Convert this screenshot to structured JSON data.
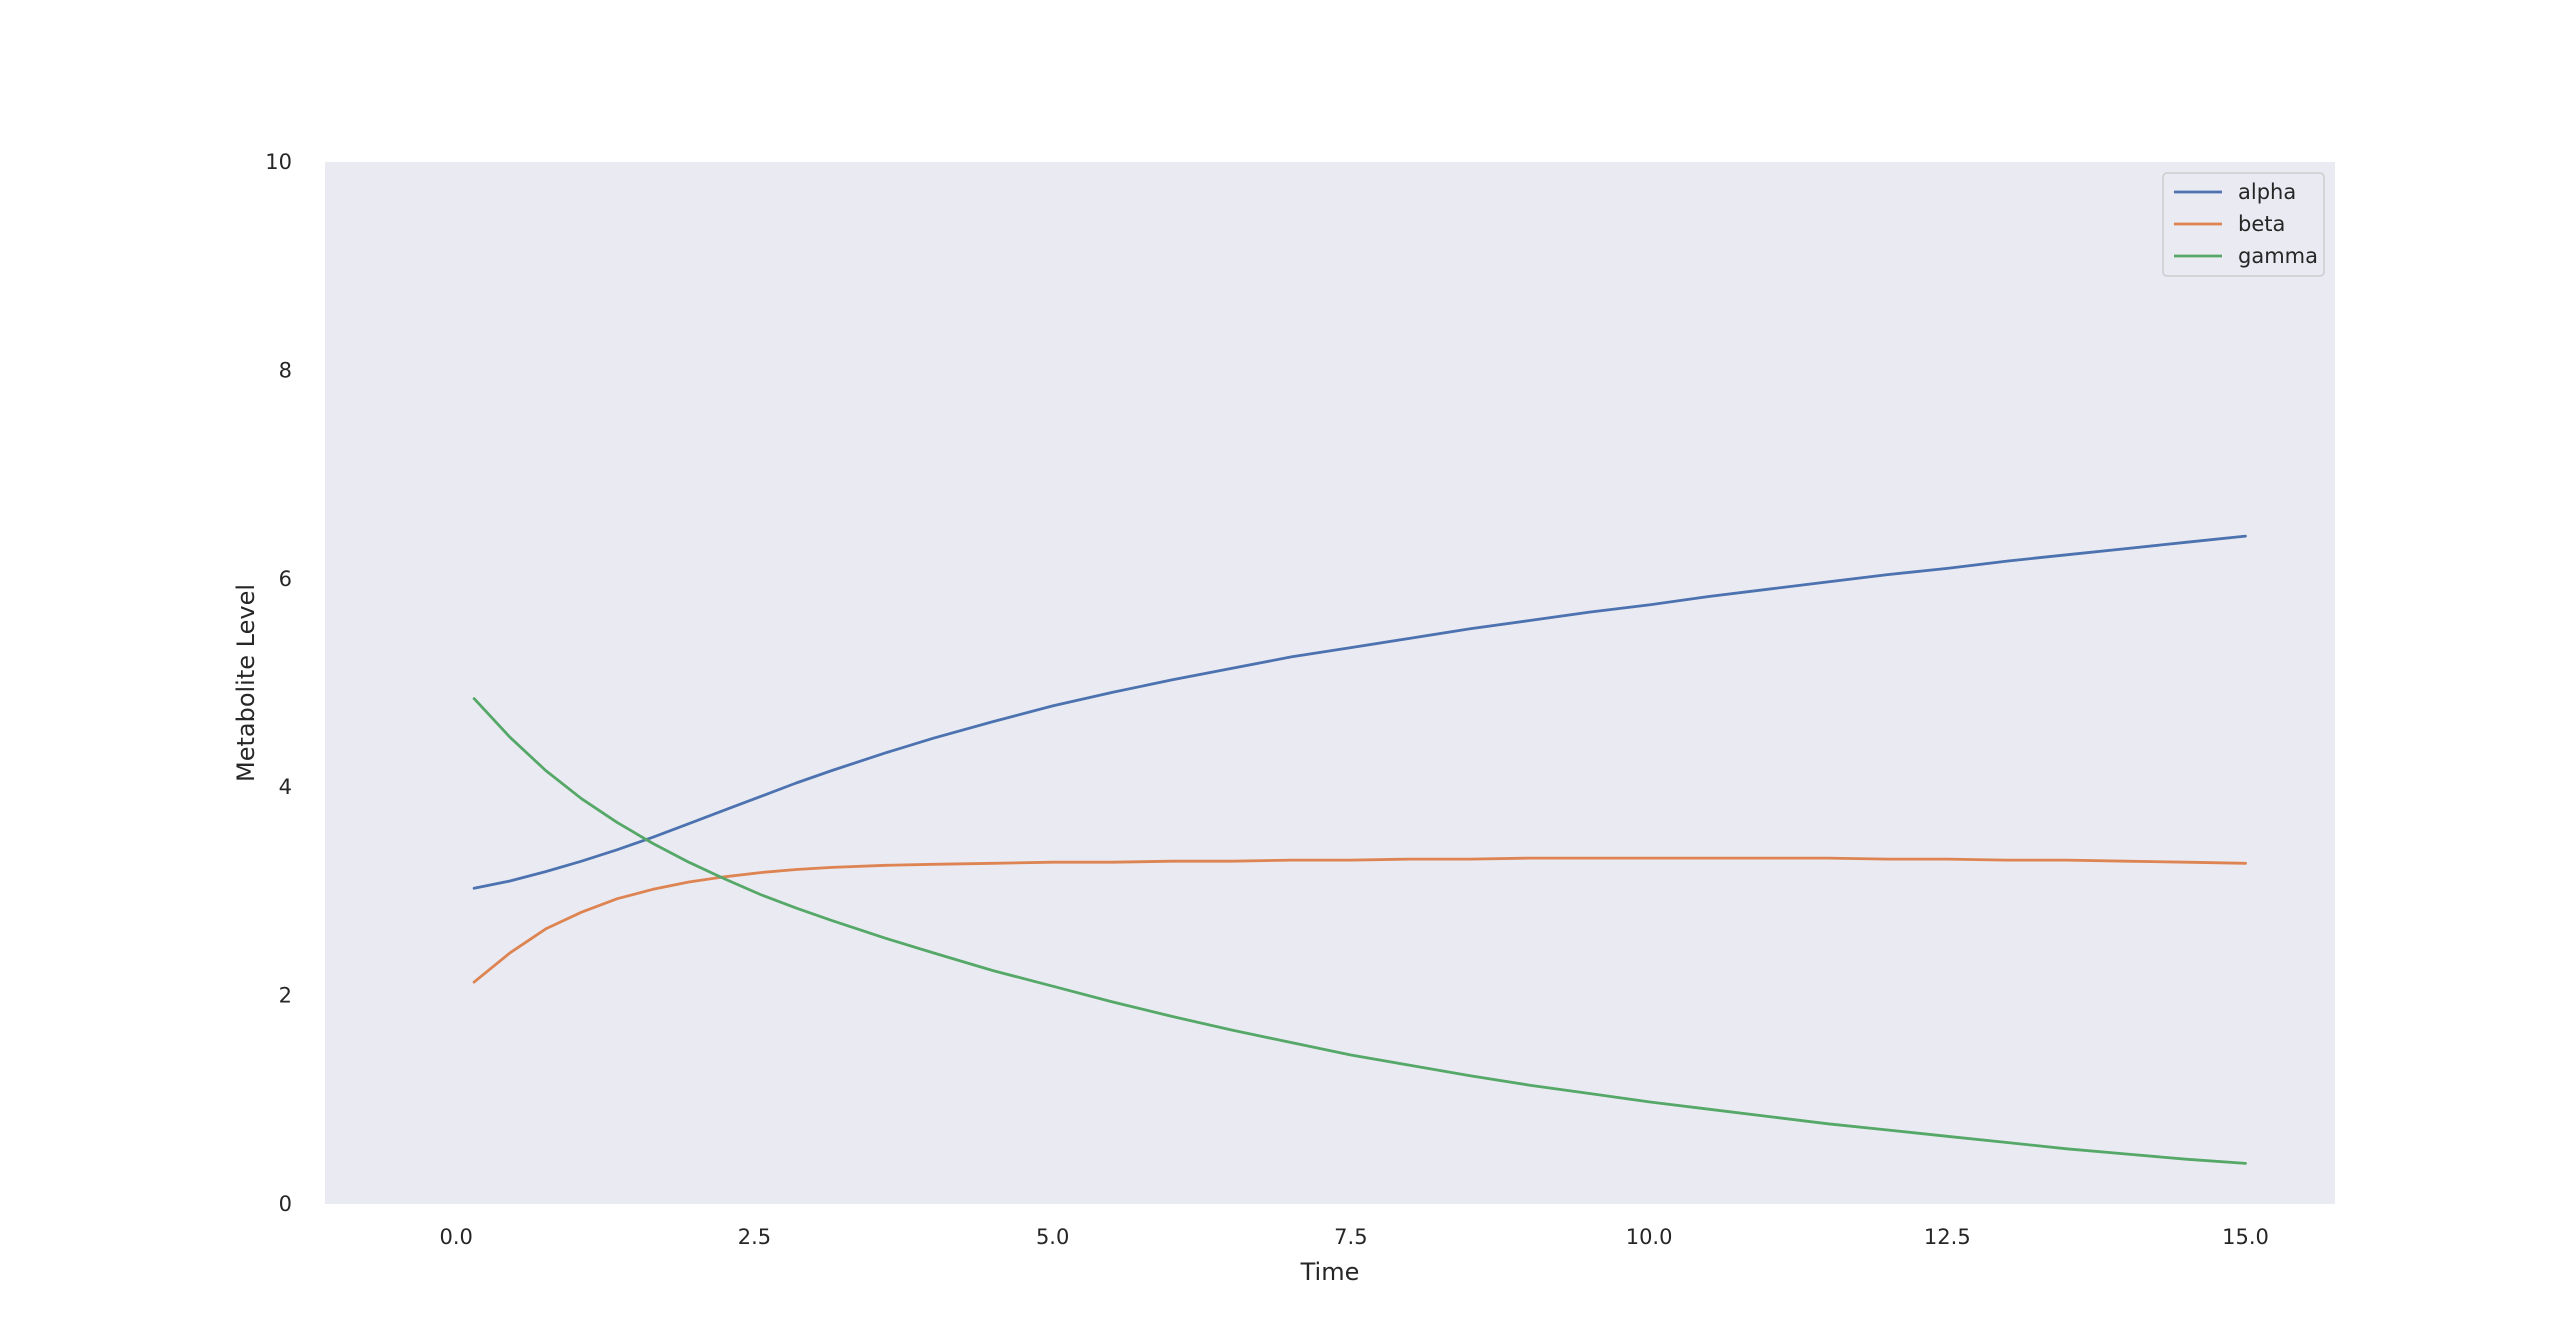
{
  "chart_data": {
    "type": "line",
    "title": "",
    "xlabel": "Time",
    "ylabel": "Metabolite Level",
    "xlim": [
      -1.1,
      15.75
    ],
    "ylim": [
      0,
      10
    ],
    "x_ticks": [
      "0.0",
      "2.5",
      "5.0",
      "7.5",
      "10.0",
      "12.5",
      "15.0"
    ],
    "x_tick_values": [
      0,
      2.5,
      5,
      7.5,
      10,
      12.5,
      15
    ],
    "y_ticks": [
      "0",
      "2",
      "4",
      "6",
      "8",
      "10"
    ],
    "y_tick_values": [
      0,
      2,
      4,
      6,
      8,
      10
    ],
    "grid": false,
    "background": "#eaeaf2",
    "legend": {
      "placement": "top-right",
      "entries": [
        "alpha",
        "beta",
        "gamma"
      ]
    },
    "x": [
      0.15,
      0.45,
      0.75,
      1.05,
      1.35,
      1.65,
      1.95,
      2.25,
      2.55,
      2.85,
      3.15,
      3.6,
      4.0,
      4.5,
      5.0,
      5.5,
      6.0,
      6.5,
      7.0,
      7.5,
      8.0,
      8.5,
      9.0,
      9.5,
      10.0,
      10.5,
      11.0,
      11.5,
      12.0,
      12.5,
      13.0,
      13.5,
      14.0,
      14.5,
      15.0
    ],
    "series": [
      {
        "name": "alpha",
        "color": "#4c72b0",
        "values": [
          3.03,
          3.1,
          3.19,
          3.29,
          3.4,
          3.52,
          3.65,
          3.78,
          3.91,
          4.04,
          4.16,
          4.33,
          4.47,
          4.63,
          4.78,
          4.91,
          5.03,
          5.14,
          5.25,
          5.34,
          5.43,
          5.52,
          5.6,
          5.68,
          5.75,
          5.83,
          5.9,
          5.97,
          6.04,
          6.1,
          6.17,
          6.23,
          6.29,
          6.35,
          6.41
        ]
      },
      {
        "name": "beta",
        "color": "#dd8452",
        "values": [
          2.13,
          2.41,
          2.64,
          2.8,
          2.93,
          3.02,
          3.09,
          3.14,
          3.18,
          3.21,
          3.23,
          3.25,
          3.26,
          3.27,
          3.28,
          3.28,
          3.29,
          3.29,
          3.3,
          3.3,
          3.31,
          3.31,
          3.32,
          3.32,
          3.32,
          3.32,
          3.32,
          3.32,
          3.31,
          3.31,
          3.3,
          3.3,
          3.29,
          3.28,
          3.27
        ]
      },
      {
        "name": "gamma",
        "color": "#55a868",
        "values": [
          4.85,
          4.48,
          4.16,
          3.89,
          3.66,
          3.46,
          3.28,
          3.12,
          2.97,
          2.84,
          2.72,
          2.55,
          2.41,
          2.24,
          2.09,
          1.94,
          1.8,
          1.67,
          1.55,
          1.43,
          1.33,
          1.23,
          1.14,
          1.06,
          0.98,
          0.91,
          0.84,
          0.77,
          0.71,
          0.65,
          0.59,
          0.53,
          0.48,
          0.43,
          0.39
        ]
      }
    ]
  }
}
